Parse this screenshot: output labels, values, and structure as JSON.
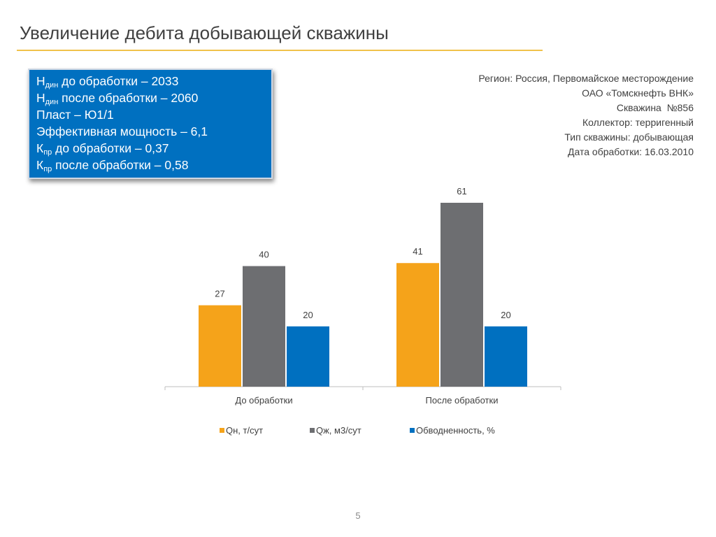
{
  "slide": {
    "title": "Увеличение дебита добывающей скважины",
    "page_number": "5"
  },
  "info_box": {
    "lines": [
      {
        "main": "Н",
        "sub": "дин",
        "rest": " до обработки – 2033"
      },
      {
        "main": "Н",
        "sub": "дин",
        "rest": " после обработки – 2060"
      },
      {
        "main": "Пласт – Ю1/1",
        "sub": "",
        "rest": ""
      },
      {
        "main": "Эффективная мощность – 6,1",
        "sub": "",
        "rest": ""
      },
      {
        "main": "К",
        "sub": "пр",
        "rest": " до обработки – 0,37"
      },
      {
        "main": "К",
        "sub": "пр",
        "rest": " после обработки – 0,58"
      }
    ]
  },
  "well_meta": [
    "Регион: Россия, Первомайское месторождение",
    "ОАО «Томскнефть ВНК»",
    "Скважина  №856",
    "Коллектор: терригенный",
    "Тип скважины: добывающая",
    "Дата обработки: 16.03.2010"
  ],
  "colors": {
    "qn": "#f5a31a",
    "qzh": "#6d6e71",
    "water": "#0070c0",
    "axis": "#bfbfbf",
    "label": "#404040",
    "info_bg": "#0070c0"
  },
  "chart_data": {
    "type": "bar",
    "categories": [
      "До обработки",
      "После обработки"
    ],
    "series": [
      {
        "name": "Qн, т/сут",
        "values": [
          27,
          41
        ],
        "color": "#f5a31a"
      },
      {
        "name": "Qж, м3/сут",
        "values": [
          40,
          61
        ],
        "color": "#6d6e71"
      },
      {
        "name": "Обводненность, %",
        "values": [
          20,
          20
        ],
        "color": "#0070c0"
      }
    ],
    "ylim": [
      0,
      61
    ],
    "grid": false,
    "data_labels": true,
    "legend": "bottom"
  }
}
